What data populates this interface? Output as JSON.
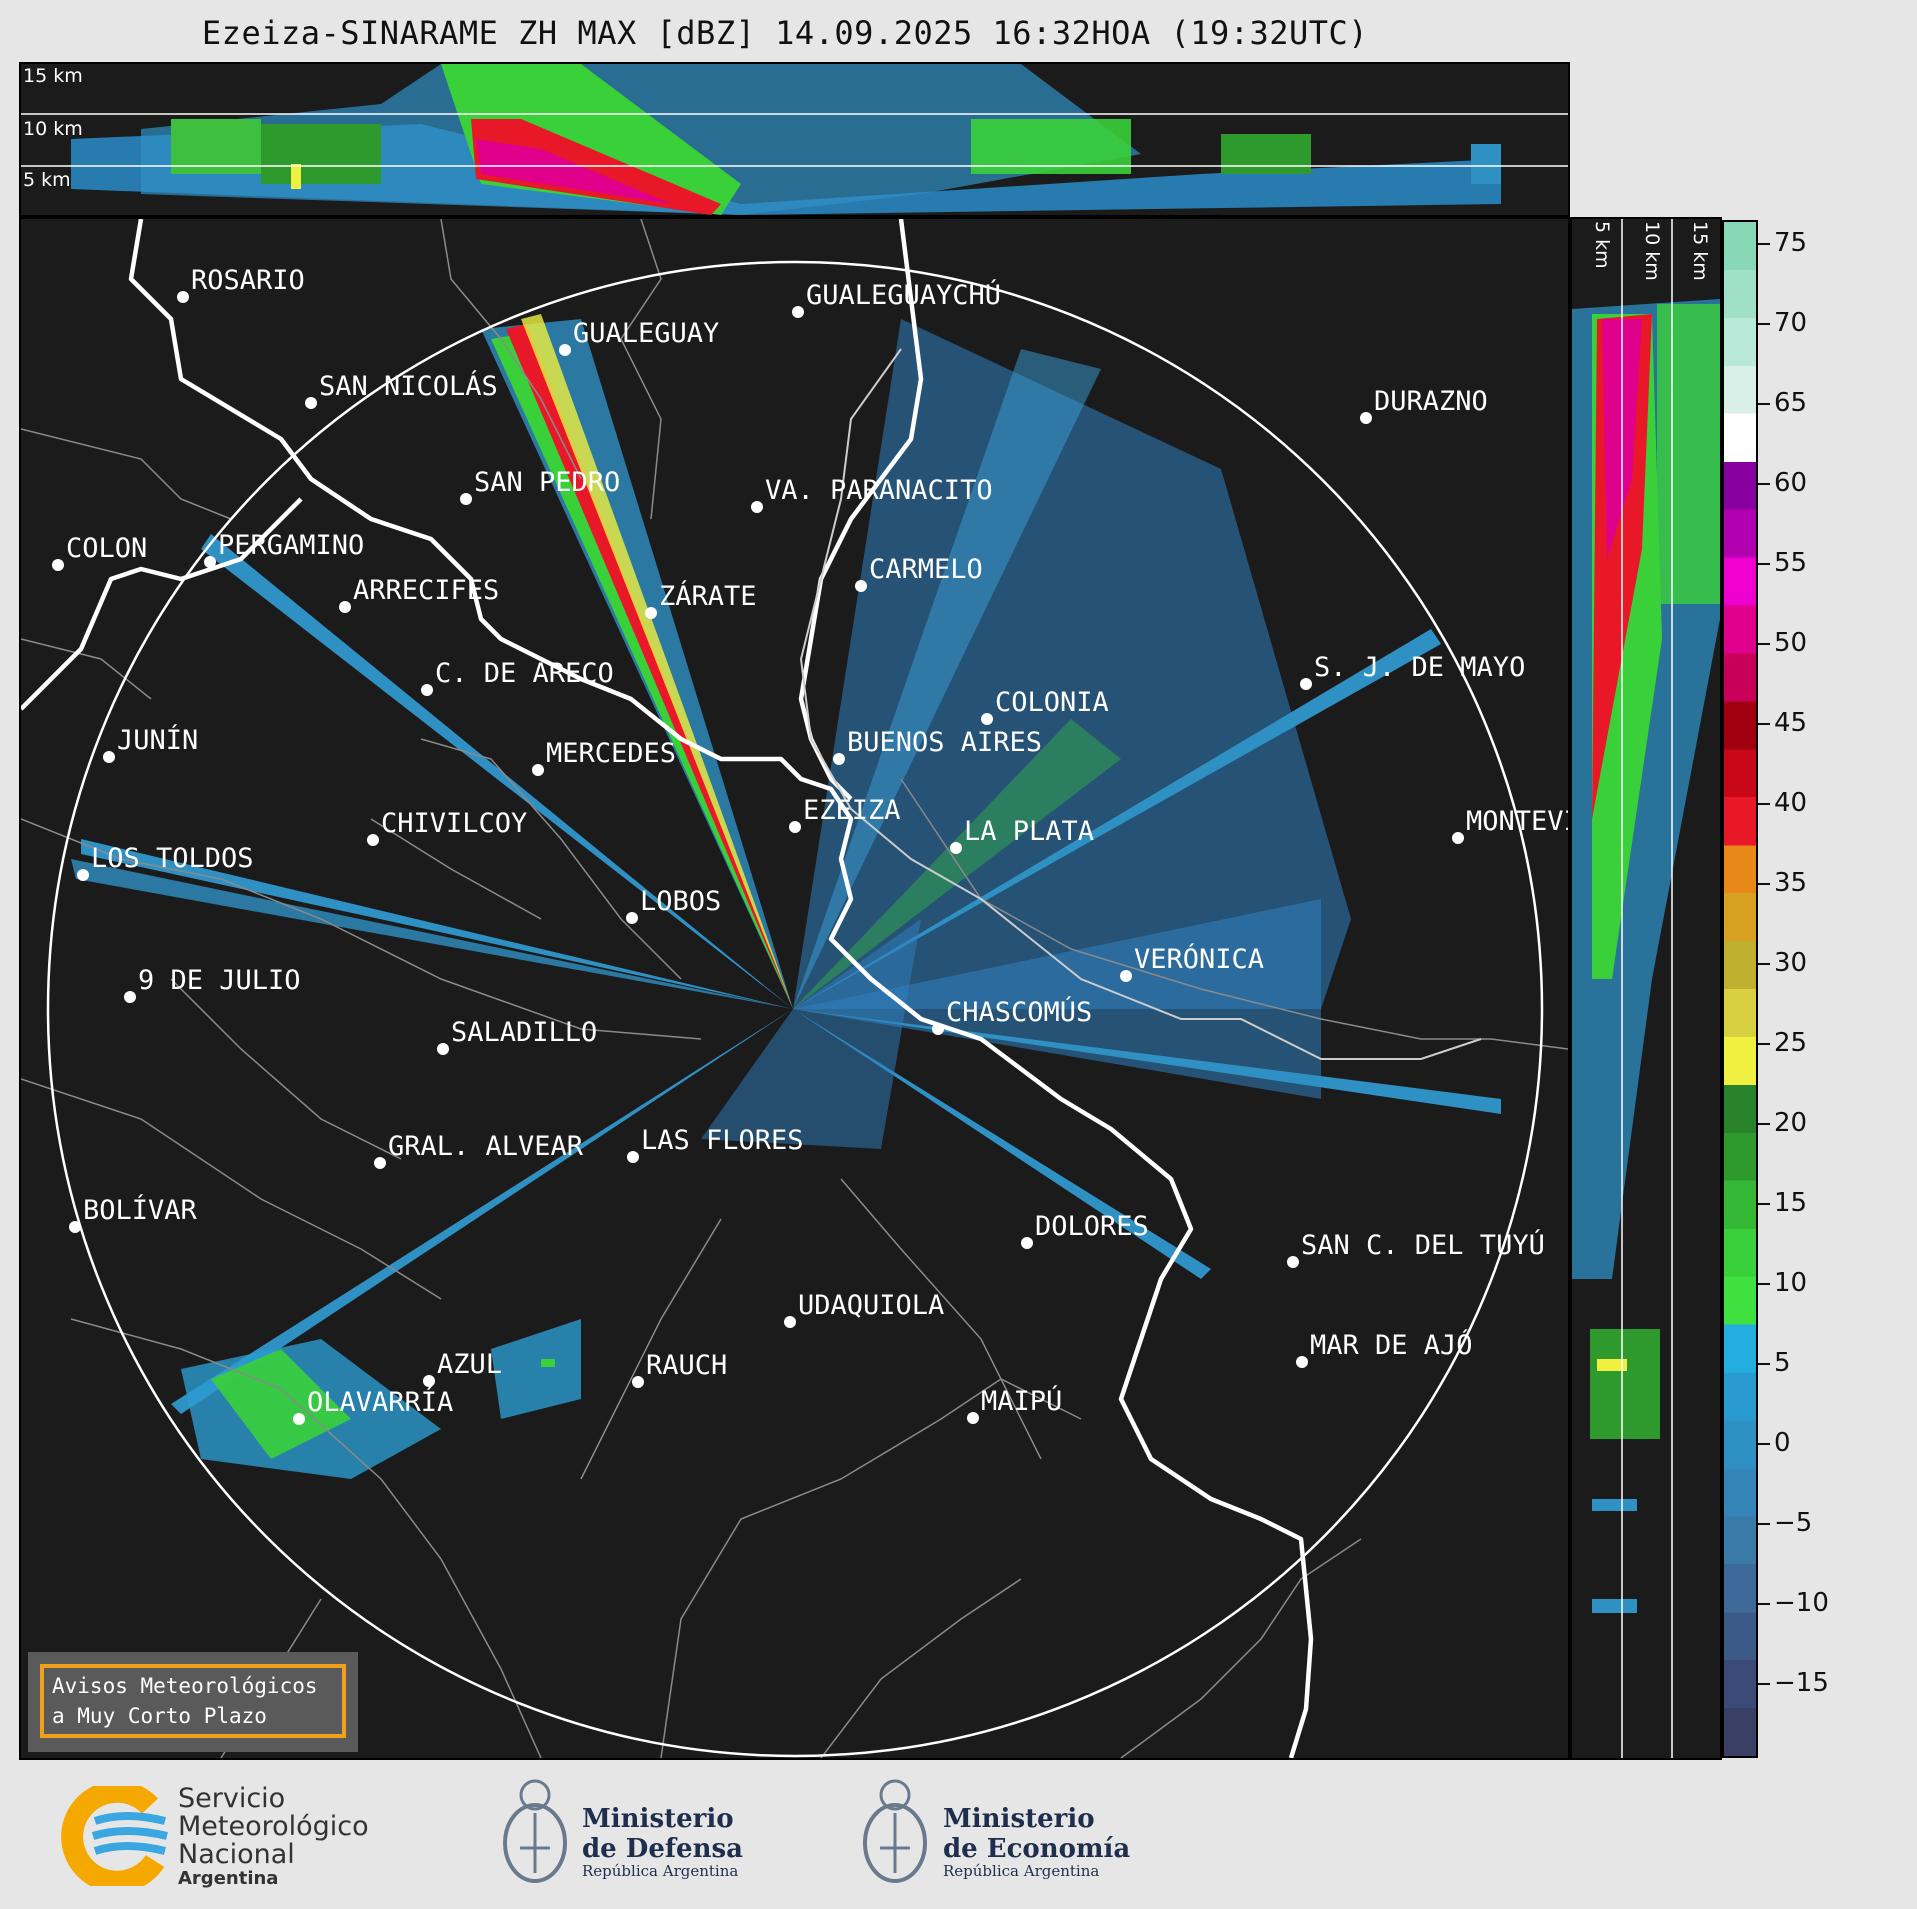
{
  "title": "Ezeiza-SINARAME ZH MAX [dBZ] 14.09.2025 16:32HOA (19:32UTC)",
  "top_panel": {
    "heights": [
      "15 km",
      "10 km",
      "5 km"
    ]
  },
  "side_panel": {
    "heights": [
      "5 km",
      "10 km",
      "15 km"
    ]
  },
  "colorbar": {
    "unit": "dBZ",
    "ticks": [
      "75",
      "70",
      "65",
      "60",
      "55",
      "50",
      "45",
      "40",
      "35",
      "30",
      "25",
      "20",
      "15",
      "10",
      "5",
      "0",
      "−5",
      "−10",
      "−15"
    ],
    "colors": [
      "#3a3f66",
      "#3b4a78",
      "#3c5a88",
      "#3d6a98",
      "#3a7aa8",
      "#3585b8",
      "#2f90c4",
      "#2a9bd0",
      "#24aee0",
      "#3fe03f",
      "#3ad03a",
      "#35b835",
      "#2e9a2e",
      "#2a822a",
      "#f0f040",
      "#d8d040",
      "#c0b030",
      "#d8a020",
      "#e88818",
      "#e81828",
      "#c80818",
      "#a00010",
      "#c8005a",
      "#e0008c",
      "#f000d0",
      "#b000b0",
      "#8800a0",
      "#ffffff",
      "#d8f0e8",
      "#b8e8d8",
      "#a0e0c8",
      "#88d8b8"
    ]
  },
  "cities": [
    {
      "name": "ROSARIO"
    },
    {
      "name": "GUALEGUAYCHÚ"
    },
    {
      "name": "GUALEGUAY"
    },
    {
      "name": "SAN NICOLÁS"
    },
    {
      "name": "DURAZNO"
    },
    {
      "name": "SAN PEDRO"
    },
    {
      "name": "VA. PARANACITO"
    },
    {
      "name": "COLON"
    },
    {
      "name": "PERGAMINO"
    },
    {
      "name": "CARMELO"
    },
    {
      "name": "ARRECIFES"
    },
    {
      "name": "ZÁRATE"
    },
    {
      "name": "C. DE ARECO"
    },
    {
      "name": "S. J. DE MAYO"
    },
    {
      "name": "COLONIA"
    },
    {
      "name": "JUNÍN"
    },
    {
      "name": "BUENOS AIRES"
    },
    {
      "name": "MERCEDES"
    },
    {
      "name": "EZEIZA"
    },
    {
      "name": "MONTEVIDEO"
    },
    {
      "name": "CHIVILCOY"
    },
    {
      "name": "LA PLATA"
    },
    {
      "name": "LOS TOLDOS"
    },
    {
      "name": "LOBOS"
    },
    {
      "name": "VERÓNICA"
    },
    {
      "name": "9 DE JULIO"
    },
    {
      "name": "CHASCOMÚS"
    },
    {
      "name": "SALADILLO"
    },
    {
      "name": "LAS FLORES"
    },
    {
      "name": "GRAL. ALVEAR"
    },
    {
      "name": "BOLÍVAR"
    },
    {
      "name": "DOLORES"
    },
    {
      "name": "SAN C. DEL TUYÚ"
    },
    {
      "name": "UDAQUIOLA"
    },
    {
      "name": "MAR DE AJÓ"
    },
    {
      "name": "AZUL"
    },
    {
      "name": "RAUCH"
    },
    {
      "name": "OLAVARRÍA"
    },
    {
      "name": "MAIPÚ"
    }
  ],
  "aviso": {
    "line1": "Avisos Meteorológicos",
    "line2": "a Muy Corto Plazo"
  },
  "footer": {
    "smn": {
      "line1": "Servicio",
      "line2": "Meteorológico",
      "line3": "Nacional",
      "line4": "Argentina"
    },
    "defensa": {
      "line1": "Ministerio",
      "line2": "de Defensa",
      "line3": "República Argentina"
    },
    "economia": {
      "line1": "Ministerio",
      "line2": "de Economía",
      "line3": "República Argentina"
    }
  }
}
